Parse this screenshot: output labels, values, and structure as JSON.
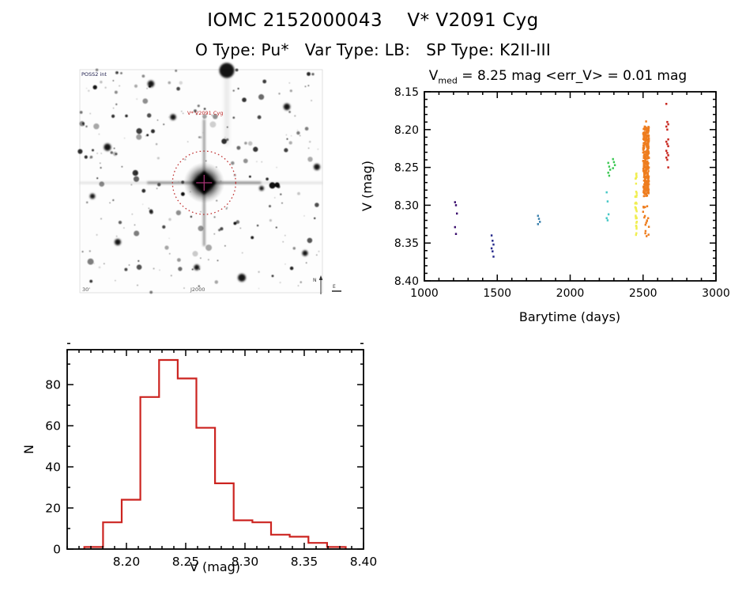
{
  "page": {
    "title": "IOMC 2152000043    V* V2091 Cyg",
    "subtitle": "O Type: Pu*   Var Type: LB:   SP Type: K2II-III"
  },
  "finding_chart": {
    "survey_label": "POSS2 int",
    "target_label": "V* V2091 Cyg",
    "bottom_label": "J2000",
    "scale_label": "30'",
    "compass_north": "N",
    "compass_east": "E",
    "marker_color": "#bb2222",
    "crosshair_color": "#aa3377",
    "star_seed": 12,
    "star_count": 240,
    "notable_stars": [
      [
        186,
        1,
        9.5
      ],
      [
        262,
        47,
        4.2
      ],
      [
        35,
        98,
        4.6
      ],
      [
        300,
        123,
        4.0
      ],
      [
        205,
        263,
        5.0
      ],
      [
        90,
        18,
        4.2
      ],
      [
        48,
        218,
        4.0
      ],
      [
        148,
        250,
        3.6
      ],
      [
        16,
        160,
        3.4
      ],
      [
        230,
        150,
        3.0
      ],
      [
        118,
        60,
        3.8
      ],
      [
        285,
        232,
        3.6
      ]
    ]
  },
  "chart_data": [
    {
      "type": "scatter",
      "title": {
        "var": "V",
        "sub": "med",
        "rest": " = 8.25 mag <err_V> = 0.01 mag"
      },
      "xlabel": "Barytime (days)",
      "ylabel": "V (mag)",
      "xlim": [
        1000,
        3000
      ],
      "ylim": [
        8.15,
        8.4
      ],
      "y_axis_inverted_magnitudes": true,
      "xticks": [
        1000,
        1500,
        2000,
        2500,
        3000
      ],
      "xtick_labels": [
        "1000",
        "1500",
        "2000",
        "2500",
        "3000"
      ],
      "yticks": [
        8.15,
        8.2,
        8.25,
        8.3,
        8.35,
        8.4
      ],
      "ytick_labels": [
        "8.15",
        "8.20",
        "8.25",
        "8.30",
        "8.35",
        "8.40"
      ],
      "x_minor_step": 100,
      "y_minor_step": 0.01,
      "grid": false,
      "legend": "none",
      "groups": [
        {
          "name": "epoch-1",
          "color": "#3a0e6e",
          "x": 1217,
          "points": [
            8.296,
            8.3,
            8.311,
            8.329,
            8.338
          ]
        },
        {
          "name": "epoch-2",
          "color": "#282c8c",
          "x": 1468,
          "points": [
            8.34,
            8.347,
            8.352,
            8.357,
            8.361,
            8.368
          ]
        },
        {
          "name": "epoch-3",
          "color": "#3c82ae",
          "x": 1786,
          "points": [
            8.314,
            8.318,
            8.322,
            8.325
          ]
        },
        {
          "name": "epoch-4",
          "color": "#46c8c6",
          "x": 2257,
          "points": [
            8.283,
            8.295,
            8.312,
            8.317,
            8.32
          ]
        },
        {
          "name": "epoch-5a",
          "color": "#3cc853",
          "x": 2268,
          "points": [
            8.244,
            8.249,
            8.253,
            8.257,
            8.261
          ]
        },
        {
          "name": "epoch-5b",
          "color": "#3cc853",
          "x": 2300,
          "points": [
            8.239,
            8.243,
            8.247,
            8.251
          ]
        },
        {
          "name": "epoch-6",
          "color": "#f0ee50",
          "x": 2452,
          "seed": 3,
          "strip": {
            "v_min": 8.258,
            "v_max": 8.341,
            "n": 36,
            "width_days": 12
          }
        },
        {
          "name": "epoch-7",
          "color": "#ee7d1e",
          "x": 2520,
          "seed": 9,
          "strip": {
            "v_min": 8.183,
            "v_max": 8.345,
            "n": 330,
            "width_days": 40,
            "core_min": 8.196,
            "core_max": 8.288,
            "core_frac": 0.86
          }
        },
        {
          "name": "epoch-8",
          "color": "#c8261e",
          "x": 2666,
          "points": [
            8.166,
            8.19,
            8.193,
            8.196,
            8.2,
            8.213,
            8.216,
            8.219,
            8.222,
            8.228,
            8.231,
            8.234,
            8.237,
            8.24,
            8.25
          ]
        }
      ]
    },
    {
      "type": "histogram",
      "xlabel": "V (mag)",
      "ylabel": "N",
      "xlim": [
        8.15,
        8.4
      ],
      "ylim": [
        0,
        97
      ],
      "xticks": [
        8.2,
        8.25,
        8.3,
        8.35,
        8.4
      ],
      "xtick_labels": [
        "8.20",
        "8.25",
        "8.30",
        "8.35",
        "8.40"
      ],
      "yticks": [
        0,
        20,
        40,
        60,
        80
      ],
      "ytick_labels": [
        "0",
        "20",
        "40",
        "60",
        "80"
      ],
      "x_minor_step": 0.01,
      "y_minor_step": 10,
      "grid": false,
      "bin_start": 8.1645,
      "bin_width": 0.01575,
      "counts": [
        1,
        13,
        24,
        74,
        92,
        83,
        59,
        32,
        14,
        13,
        7,
        6,
        3,
        1
      ],
      "color": "#cc2420"
    }
  ]
}
